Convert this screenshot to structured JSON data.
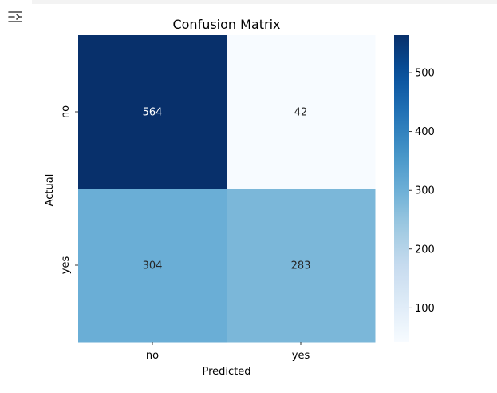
{
  "toolbar": {
    "toggle_icon": "output-collapse-icon"
  },
  "chart_data": {
    "type": "heatmap",
    "title": "Confusion Matrix",
    "xlabel": "Predicted",
    "ylabel": "Actual",
    "x_categories": [
      "no",
      "yes"
    ],
    "y_categories": [
      "no",
      "yes"
    ],
    "values": [
      [
        564,
        42
      ],
      [
        304,
        283
      ]
    ],
    "colormap": "Blues",
    "colorbar": {
      "min": 42,
      "max": 564,
      "ticks": [
        100,
        200,
        300,
        400,
        500
      ]
    }
  }
}
